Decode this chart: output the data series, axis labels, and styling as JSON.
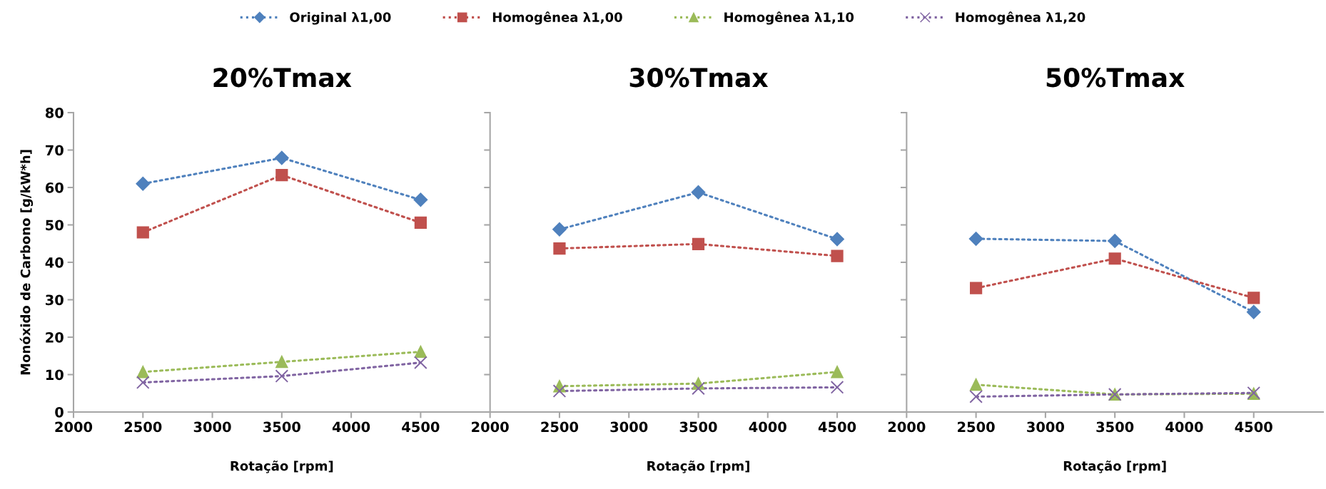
{
  "chart_data": [
    {
      "type": "line",
      "title": "20%Tmax",
      "xlabel": "Rotação [rpm]",
      "ylabel": "Monóxido de Carbono [g/kW*h]",
      "x": [
        2500,
        3500,
        4500
      ],
      "xlim": [
        2000,
        5000
      ],
      "xticks": [
        2000,
        2500,
        3000,
        3500,
        4000,
        4500
      ],
      "ylim": [
        0,
        80
      ],
      "yticks": [
        0,
        10,
        20,
        30,
        40,
        50,
        60,
        70,
        80
      ],
      "line_style": "dotted",
      "grid": false,
      "legend": "top",
      "series": [
        {
          "name": "Original λ1,00",
          "color": "#4f81bd",
          "marker": "diamond",
          "values": [
            61.0,
            67.9,
            56.7
          ]
        },
        {
          "name": "Homogênea λ1,00",
          "color": "#c0504d",
          "marker": "square",
          "values": [
            48.0,
            63.3,
            50.6
          ]
        },
        {
          "name": "Homogênea λ1,10",
          "color": "#9bbb59",
          "marker": "triangle",
          "values": [
            10.7,
            13.4,
            16.1
          ]
        },
        {
          "name": "Homogênea λ1,20",
          "color": "#8064a2",
          "marker": "cross",
          "values": [
            7.9,
            9.6,
            13.2
          ]
        }
      ]
    },
    {
      "type": "line",
      "title": "30%Tmax",
      "xlabel": "Rotação [rpm]",
      "x": [
        2500,
        3500,
        4500
      ],
      "xlim": [
        2000,
        5000
      ],
      "xticks": [
        2000,
        2500,
        3000,
        3500,
        4000,
        4500
      ],
      "ylim": [
        0,
        80
      ],
      "tick_labels": "x",
      "line_style": "dotted",
      "grid": false,
      "series": [
        {
          "color": "#4f81bd",
          "marker": "diamond",
          "values": [
            48.8,
            58.7,
            46.2
          ]
        },
        {
          "color": "#c0504d",
          "marker": "square",
          "values": [
            43.7,
            44.9,
            41.7
          ]
        },
        {
          "color": "#9bbb59",
          "marker": "triangle",
          "values": [
            6.9,
            7.6,
            10.7
          ]
        },
        {
          "color": "#8064a2",
          "marker": "cross",
          "values": [
            5.6,
            6.3,
            6.6
          ]
        }
      ]
    },
    {
      "type": "line",
      "title": "50%Tmax",
      "xlabel": "Rotação [rpm]",
      "x": [
        2500,
        3500,
        4500
      ],
      "xlim": [
        2000,
        5000
      ],
      "xticks": [
        2000,
        2500,
        3000,
        3500,
        4000,
        4500
      ],
      "ylim": [
        0,
        80
      ],
      "tick_labels": "x",
      "line_style": "dotted",
      "grid": false,
      "series": [
        {
          "color": "#4f81bd",
          "marker": "diamond",
          "values": [
            46.3,
            45.7,
            26.7
          ]
        },
        {
          "color": "#c0504d",
          "marker": "square",
          "values": [
            33.1,
            41.0,
            30.5
          ]
        },
        {
          "color": "#9bbb59",
          "marker": "triangle",
          "values": [
            7.3,
            4.7,
            4.9
          ]
        },
        {
          "color": "#8064a2",
          "marker": "cross",
          "values": [
            4.1,
            4.7,
            5.1
          ]
        }
      ]
    }
  ]
}
